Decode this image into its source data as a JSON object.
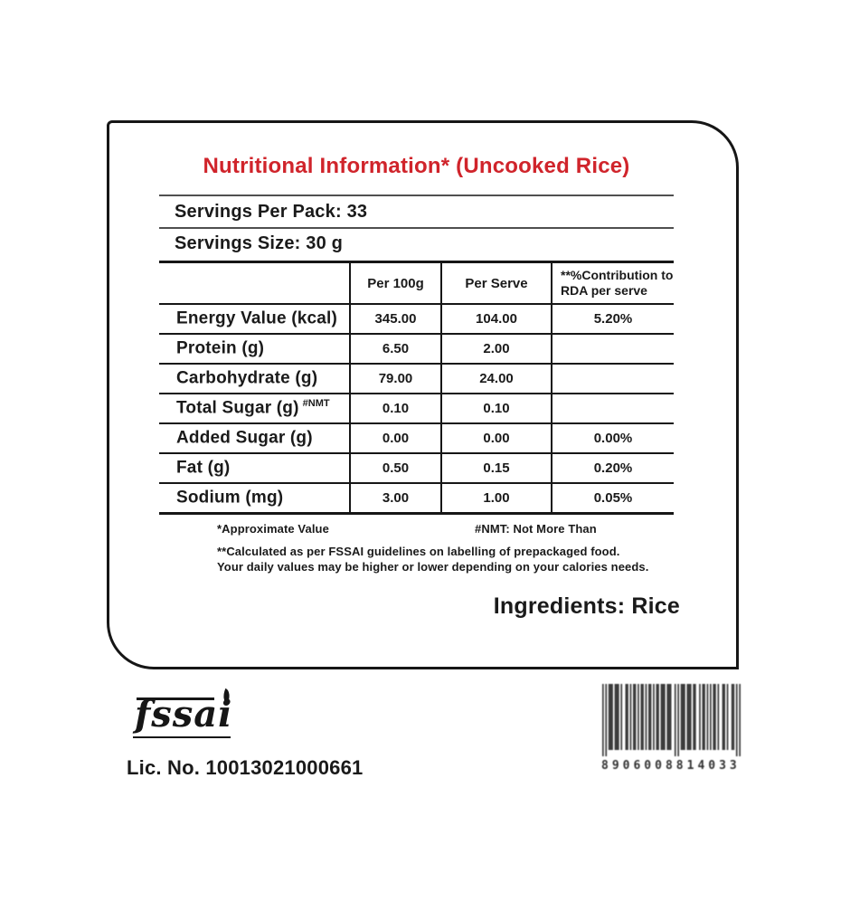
{
  "label": {
    "title": "Nutritional Information* (Uncooked Rice)",
    "title_color": "#d0242b",
    "servings_per_pack": "Servings Per Pack: 33",
    "servings_size": "Servings Size: 30 g",
    "table": {
      "headers": [
        "",
        "Per 100g",
        "Per Serve",
        "**%Contribution to RDA per serve"
      ],
      "rows": [
        {
          "label": "Energy Value (kcal)",
          "sup": "",
          "per_100g": "345.00",
          "per_serve": "104.00",
          "rda": "5.20%"
        },
        {
          "label": "Protein (g)",
          "sup": "",
          "per_100g": "6.50",
          "per_serve": "2.00",
          "rda": ""
        },
        {
          "label": "Carbohydrate (g)",
          "sup": "",
          "per_100g": "79.00",
          "per_serve": "24.00",
          "rda": ""
        },
        {
          "label": "Total Sugar (g)",
          "sup": "#NMT",
          "per_100g": "0.10",
          "per_serve": "0.10",
          "rda": ""
        },
        {
          "label": "Added Sugar (g)",
          "sup": "",
          "per_100g": "0.00",
          "per_serve": "0.00",
          "rda": "0.00%"
        },
        {
          "label": "Fat (g)",
          "sup": "",
          "per_100g": "0.50",
          "per_serve": "0.15",
          "rda": "0.20%"
        },
        {
          "label": "Sodium (mg)",
          "sup": "",
          "per_100g": "3.00",
          "per_serve": "1.00",
          "rda": "0.05%"
        }
      ]
    },
    "footnotes": {
      "approx": "*Approximate Value",
      "nmt": "#NMT: Not More Than",
      "calc": "**Calculated as per FSSAI guidelines on labelling of prepackaged food.",
      "daily": "Your daily values may be higher or lower depending on your calories needs."
    },
    "ingredients": "Ingredients: Rice"
  },
  "footer": {
    "fssai_text": "fssai",
    "license": "Lic. No. 10013021000661",
    "barcode_digits": "8906008814033"
  }
}
